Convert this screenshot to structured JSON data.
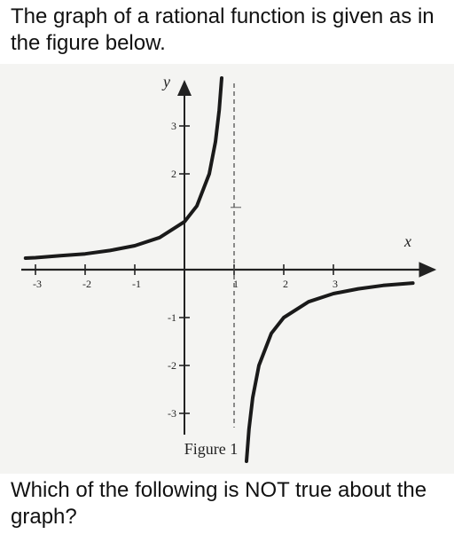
{
  "question": {
    "intro": "The graph of a rational function is given as in the figure below.",
    "prompt": "Which of the following is NOT true about the graph?"
  },
  "figure": {
    "caption": "Figure 1",
    "x_axis_label": "x",
    "y_axis_label": "y",
    "x_tick_labels": [
      "-3",
      "-2",
      "-1",
      "1",
      "2",
      "3"
    ],
    "y_tick_labels": [
      "3",
      "2",
      "-1",
      "-2",
      "-3"
    ]
  },
  "chart_data": {
    "type": "line",
    "xlabel": "x",
    "ylabel": "y",
    "xlim": [
      -3.2,
      4.6
    ],
    "ylim": [
      -3.6,
      3.6
    ],
    "vertical_asymptote": 1,
    "horizontal_asymptote": 0,
    "series": [
      {
        "x": [
          -3.2,
          -3,
          -2.5,
          -2,
          -1.5,
          -1,
          -0.5,
          0,
          0.25,
          0.5,
          0.625,
          0.7,
          0.75
        ],
        "y": [
          0.24,
          0.25,
          0.29,
          0.33,
          0.4,
          0.5,
          0.67,
          1,
          1.33,
          2,
          2.67,
          3.33,
          4
        ]
      },
      {
        "x": [
          1.25,
          1.3,
          1.375,
          1.5,
          1.75,
          2,
          2.5,
          3,
          3.5,
          4,
          4.6
        ],
        "y": [
          -4,
          -3.33,
          -2.67,
          -2,
          -1.33,
          -1,
          -0.67,
          -0.5,
          -0.4,
          -0.33,
          -0.28
        ]
      }
    ]
  }
}
